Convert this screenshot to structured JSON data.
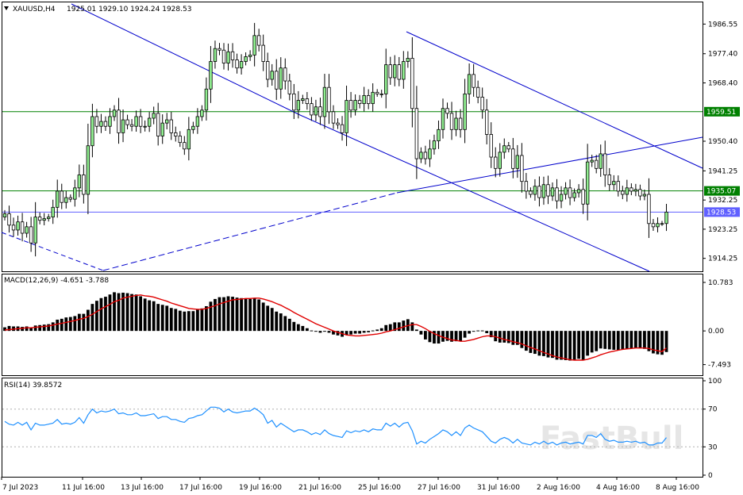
{
  "header": {
    "symbol": "XAUUSD,H4",
    "ohlc": "1925.01 1929.10 1924.24 1928.53"
  },
  "watermark": "FastBull",
  "colors": {
    "bull": "#90ee90",
    "bear": "#ffffff",
    "outline": "#000000",
    "channel": "#0000cc",
    "level": "#008000",
    "price_line": "#6060ff",
    "macd_signal": "#e00000",
    "rsi": "#1e90ff"
  },
  "chart_data": [
    {
      "type": "candlestick",
      "panel": "price",
      "ylim": [
        1910.5,
        1993.0
      ],
      "y_ticks": [
        "1986.55",
        "1977.40",
        "1968.40",
        "1950.40",
        "1941.25",
        "1932.25",
        "1923.25",
        "1914.25"
      ],
      "levels": [
        {
          "value": 1959.51,
          "label": "1959.51",
          "color": "#008000"
        },
        {
          "value": 1935.07,
          "label": "1935.07",
          "color": "#008000"
        },
        {
          "value": 1928.53,
          "label": "1928.53",
          "color": "#6060ff"
        }
      ],
      "x_ticks": [
        "7 Jul 2023",
        "11 Jul 16:00",
        "13 Jul 16:00",
        "17 Jul 16:00",
        "19 Jul 16:00",
        "21 Jul 16:00",
        "25 Jul 16:00",
        "27 Jul 16:00",
        "31 Jul 16:00",
        "2 Aug 16:00",
        "4 Aug 16:00",
        "8 Aug 16:00"
      ],
      "closes": [
        1928.0,
        1924.5,
        1923.0,
        1925.5,
        1922.0,
        1924.0,
        1919.0,
        1927.0,
        1926.0,
        1926.5,
        1927.0,
        1930.0,
        1935.0,
        1931.5,
        1933.0,
        1932.5,
        1936.0,
        1940.0,
        1934.0,
        1949.0,
        1958.0,
        1955.0,
        1956.5,
        1955.0,
        1958.0,
        1960.0,
        1953.0,
        1957.0,
        1955.5,
        1955.0,
        1958.0,
        1955.0,
        1955.0,
        1957.5,
        1959.0,
        1952.0,
        1956.0,
        1957.0,
        1953.0,
        1952.0,
        1950.0,
        1948.0,
        1954.0,
        1955.0,
        1958.0,
        1960.0,
        1966.5,
        1975.0,
        1979.0,
        1978.5,
        1974.5,
        1978.0,
        1975.5,
        1973.0,
        1975.0,
        1976.5,
        1977.0,
        1983.0,
        1980.0,
        1975.0,
        1969.5,
        1972.0,
        1966.5,
        1973.0,
        1969.0,
        1965.0,
        1960.0,
        1963.0,
        1963.5,
        1962.0,
        1958.5,
        1961.0,
        1958.0,
        1967.0,
        1959.5,
        1956.0,
        1955.5,
        1953.0,
        1963.0,
        1960.0,
        1963.0,
        1962.0,
        1964.5,
        1962.0,
        1965.5,
        1965.0,
        1965.0,
        1974.0,
        1970.0,
        1974.0,
        1969.5,
        1975.0,
        1976.0,
        1960.5,
        1945.0,
        1947.0,
        1945.0,
        1948.0,
        1950.5,
        1954.0,
        1960.5,
        1959.0,
        1954.0,
        1957.5,
        1954.0,
        1965.0,
        1971.0,
        1967.0,
        1964.0,
        1960.0,
        1952.5,
        1945.5,
        1942.0,
        1947.0,
        1949.0,
        1948.0,
        1942.0,
        1946.0,
        1938.0,
        1935.0,
        1934.0,
        1936.5,
        1933.0,
        1937.0,
        1933.5,
        1936.0,
        1932.0,
        1934.0,
        1936.0,
        1933.0,
        1934.5,
        1935.5,
        1931.0,
        1944.0,
        1944.5,
        1942.0,
        1946.5,
        1940.0,
        1937.0,
        1938.0,
        1935.0,
        1934.0,
        1936.0,
        1935.0,
        1935.5,
        1933.5,
        1934.0,
        1925.0,
        1924.0,
        1925.0,
        1925.0,
        1928.53
      ]
    },
    {
      "type": "histogram_line",
      "panel": "macd",
      "title": "MACD(12,26,9) -4.651 -3.788",
      "ylim": [
        -9.5,
        12.2
      ],
      "y_ticks": [
        "10.783",
        "0.00",
        "-7.493"
      ],
      "series": [
        {
          "name": "MACD",
          "style": "bar",
          "values": [
            0.8,
            1.1,
            1.0,
            1.0,
            0.9,
            1.0,
            0.7,
            1.2,
            1.3,
            1.4,
            1.5,
            1.9,
            2.5,
            2.7,
            3.0,
            3.1,
            3.3,
            3.8,
            3.8,
            4.7,
            6.0,
            6.7,
            7.3,
            7.6,
            8.1,
            8.6,
            8.4,
            8.5,
            8.4,
            8.2,
            8.1,
            7.7,
            7.2,
            6.8,
            6.6,
            6.0,
            5.8,
            5.6,
            5.1,
            4.9,
            4.5,
            4.3,
            4.4,
            4.4,
            4.7,
            5.0,
            5.5,
            6.5,
            7.1,
            7.5,
            7.5,
            7.7,
            7.6,
            7.4,
            7.3,
            7.2,
            7.1,
            7.3,
            7.0,
            6.3,
            5.6,
            5.1,
            4.3,
            3.9,
            3.3,
            2.7,
            2.0,
            1.5,
            1.1,
            0.6,
            0.1,
            -0.1,
            -0.4,
            0.0,
            -0.4,
            -0.8,
            -1.0,
            -1.3,
            -0.9,
            -0.8,
            -0.6,
            -0.6,
            -0.4,
            -0.3,
            0.1,
            0.3,
            0.6,
            1.3,
            1.5,
            1.9,
            1.9,
            2.3,
            2.6,
            1.9,
            0.3,
            -0.8,
            -1.9,
            -2.5,
            -2.8,
            -2.8,
            -2.4,
            -2.2,
            -2.4,
            -2.3,
            -2.3,
            -1.5,
            -0.6,
            -0.1,
            0.1,
            0.1,
            -0.5,
            -1.4,
            -2.3,
            -2.6,
            -2.6,
            -2.7,
            -3.1,
            -3.1,
            -3.8,
            -4.4,
            -4.9,
            -5.1,
            -5.5,
            -5.6,
            -5.9,
            -6.0,
            -6.4,
            -6.4,
            -6.5,
            -6.6,
            -6.4,
            -6.2,
            -6.4,
            -5.5,
            -4.8,
            -4.5,
            -3.9,
            -4.0,
            -4.1,
            -4.2,
            -4.3,
            -4.1,
            -4.0,
            -3.9,
            -3.8,
            -3.9,
            -4.0,
            -4.5,
            -5.0,
            -5.2,
            -5.3,
            -4.7
          ]
        },
        {
          "name": "Signal",
          "style": "line",
          "values": [
            0.2,
            0.3,
            0.4,
            0.5,
            0.6,
            0.7,
            0.7,
            0.8,
            0.9,
            1.0,
            1.1,
            1.3,
            1.5,
            1.7,
            1.9,
            2.1,
            2.3,
            2.6,
            2.8,
            3.2,
            3.7,
            4.3,
            4.9,
            5.4,
            5.9,
            6.5,
            6.8,
            7.3,
            7.5,
            7.7,
            7.9,
            8.0,
            7.8,
            7.7,
            7.5,
            7.2,
            6.9,
            6.6,
            6.2,
            5.9,
            5.6,
            5.3,
            5.0,
            4.9,
            4.8,
            4.8,
            5.0,
            5.3,
            5.6,
            6.0,
            6.3,
            6.6,
            6.9,
            7.0,
            7.1,
            7.2,
            7.2,
            7.3,
            7.3,
            7.1,
            6.8,
            6.5,
            6.1,
            5.7,
            5.2,
            4.7,
            4.1,
            3.6,
            3.1,
            2.6,
            2.1,
            1.6,
            1.2,
            0.8,
            0.4,
            0.0,
            -0.3,
            -0.6,
            -0.9,
            -1.0,
            -1.1,
            -1.1,
            -1.0,
            -0.9,
            -0.8,
            -0.7,
            -0.5,
            -0.2,
            0.0,
            0.3,
            0.6,
            0.9,
            1.2,
            1.4,
            1.4,
            1.0,
            0.5,
            -0.1,
            -0.6,
            -1.0,
            -1.4,
            -1.7,
            -2.0,
            -2.1,
            -2.3,
            -2.3,
            -2.1,
            -1.9,
            -1.6,
            -1.3,
            -1.1,
            -1.1,
            -1.3,
            -1.6,
            -1.9,
            -2.1,
            -2.4,
            -2.6,
            -2.9,
            -3.3,
            -3.7,
            -4.0,
            -4.4,
            -4.8,
            -5.1,
            -5.5,
            -5.8,
            -6.0,
            -6.2,
            -6.4,
            -6.5,
            -6.5,
            -6.5,
            -6.3,
            -6.0,
            -5.7,
            -5.3,
            -5.0,
            -4.7,
            -4.5,
            -4.3,
            -4.1,
            -4.0,
            -3.9,
            -3.8,
            -3.8,
            -3.8,
            -3.9,
            -4.2,
            -4.4,
            -4.6,
            -3.8
          ]
        }
      ]
    },
    {
      "type": "line",
      "panel": "rsi",
      "title": "RSI(14) 39.8572",
      "ylim": [
        0,
        100
      ],
      "y_ticks": [
        "100",
        "70",
        "30",
        "0"
      ],
      "levels": [
        70,
        30
      ],
      "series": [
        {
          "name": "RSI(14)",
          "values": [
            57,
            54,
            53,
            56,
            53,
            56,
            48,
            55,
            53,
            53,
            54,
            55,
            59,
            54,
            55,
            54,
            56,
            61,
            55,
            64,
            70,
            66,
            68,
            67,
            68,
            70,
            65,
            66,
            64,
            64,
            66,
            63,
            63,
            64,
            65,
            60,
            62,
            62,
            59,
            59,
            57,
            56,
            60,
            61,
            63,
            64,
            68,
            72,
            72,
            71,
            67,
            70,
            67,
            66,
            67,
            68,
            68,
            71,
            68,
            64,
            55,
            58,
            51,
            55,
            52,
            49,
            46,
            48,
            48,
            46,
            43,
            45,
            43,
            48,
            44,
            42,
            41,
            40,
            47,
            45,
            47,
            46,
            48,
            46,
            49,
            48,
            48,
            55,
            52,
            55,
            51,
            55,
            56,
            47,
            33,
            36,
            34,
            38,
            41,
            44,
            48,
            46,
            42,
            46,
            42,
            50,
            53,
            50,
            48,
            46,
            41,
            36,
            34,
            38,
            40,
            38,
            34,
            38,
            34,
            33,
            32,
            35,
            33,
            36,
            33,
            35,
            32,
            34,
            35,
            33,
            34,
            35,
            33,
            42,
            42,
            40,
            44,
            38,
            36,
            37,
            35,
            35,
            36,
            35,
            36,
            34,
            35,
            32,
            32,
            34,
            34,
            39.8572
          ]
        }
      ]
    }
  ]
}
